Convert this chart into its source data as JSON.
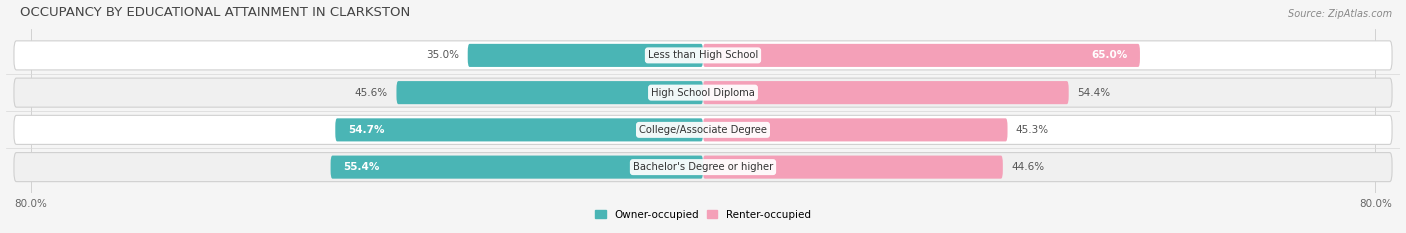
{
  "title": "OCCUPANCY BY EDUCATIONAL ATTAINMENT IN CLARKSTON",
  "source": "Source: ZipAtlas.com",
  "categories": [
    "Less than High School",
    "High School Diploma",
    "College/Associate Degree",
    "Bachelor's Degree or higher"
  ],
  "owner_pct": [
    35.0,
    45.6,
    54.7,
    55.4
  ],
  "renter_pct": [
    65.0,
    54.4,
    45.3,
    44.6
  ],
  "owner_color": "#4ab5b5",
  "renter_color": "#f4a0b8",
  "bar_bg_color": "#ebebeb",
  "row_bg_colors": [
    "#ffffff",
    "#f0f0f0",
    "#ffffff",
    "#f0f0f0"
  ],
  "bg_color": "#f5f5f5",
  "axis_min": -80.0,
  "axis_max": 80.0,
  "legend_owner": "Owner-occupied",
  "legend_renter": "Renter-occupied",
  "title_fontsize": 9.5,
  "label_fontsize": 7.5,
  "tick_fontsize": 7.5,
  "source_fontsize": 7,
  "bar_height": 0.62,
  "owner_label_inside_threshold": 50.0,
  "renter_label_inside_threshold": 60.0
}
